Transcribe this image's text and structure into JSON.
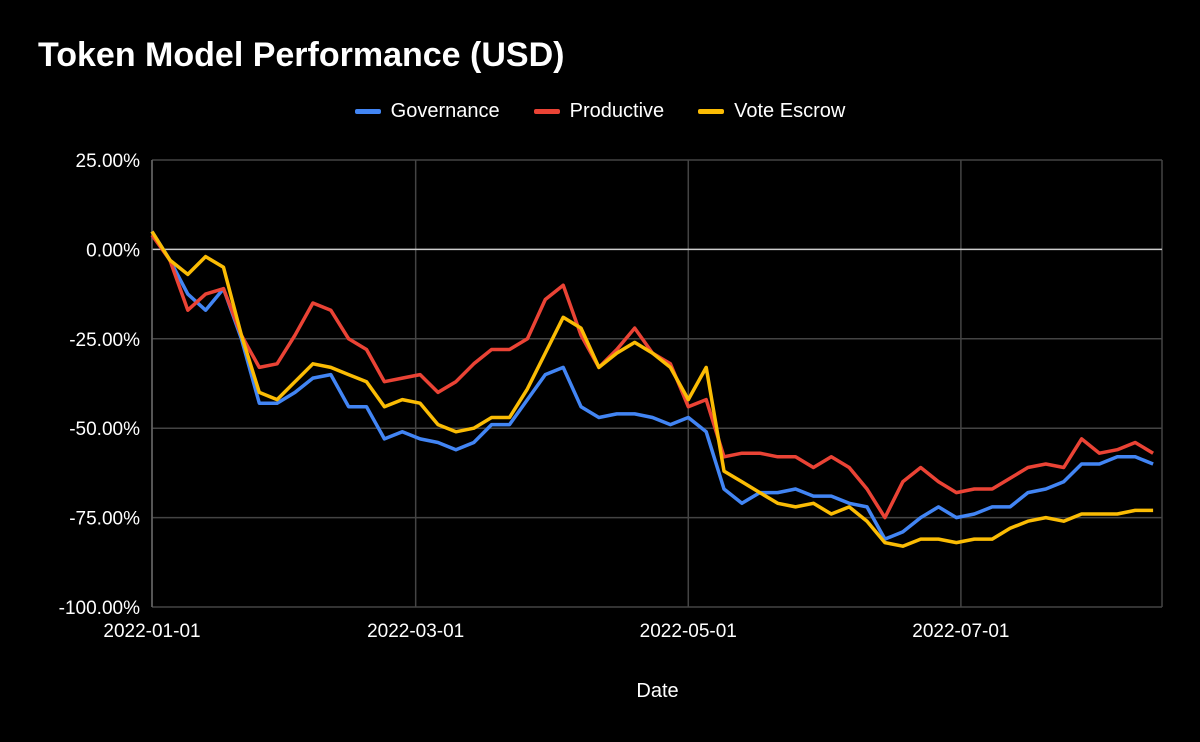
{
  "chart_data": {
    "type": "line",
    "title": "Token Model Performance (USD)",
    "xlabel": "Date",
    "ylabel": "",
    "ylim": [
      -100,
      25
    ],
    "xlim": [
      "2022-01-01",
      "2022-08-15"
    ],
    "yticks": [
      "25.00%",
      "0.00%",
      "-25.00%",
      "-50.00%",
      "-75.00%",
      "-100.00%"
    ],
    "ytick_values": [
      25,
      0,
      -25,
      -50,
      -75,
      -100
    ],
    "xticks": [
      "2022-01-01",
      "2022-03-01",
      "2022-05-01",
      "2022-07-01"
    ],
    "grid": true,
    "legend": "top",
    "x": [
      "2022-01-01",
      "2022-01-05",
      "2022-01-09",
      "2022-01-13",
      "2022-01-17",
      "2022-01-21",
      "2022-01-25",
      "2022-01-29",
      "2022-02-02",
      "2022-02-06",
      "2022-02-10",
      "2022-02-14",
      "2022-02-18",
      "2022-02-22",
      "2022-02-26",
      "2022-03-02",
      "2022-03-06",
      "2022-03-10",
      "2022-03-14",
      "2022-03-18",
      "2022-03-22",
      "2022-03-26",
      "2022-03-30",
      "2022-04-03",
      "2022-04-07",
      "2022-04-11",
      "2022-04-15",
      "2022-04-19",
      "2022-04-23",
      "2022-04-27",
      "2022-05-01",
      "2022-05-05",
      "2022-05-09",
      "2022-05-13",
      "2022-05-17",
      "2022-05-21",
      "2022-05-25",
      "2022-05-29",
      "2022-06-02",
      "2022-06-06",
      "2022-06-10",
      "2022-06-14",
      "2022-06-18",
      "2022-06-22",
      "2022-06-26",
      "2022-06-30",
      "2022-07-04",
      "2022-07-08",
      "2022-07-12",
      "2022-07-16",
      "2022-07-20",
      "2022-07-24",
      "2022-07-28",
      "2022-08-01",
      "2022-08-05",
      "2022-08-09",
      "2022-08-13"
    ],
    "series": [
      {
        "name": "Governance",
        "color": "#4285f4",
        "values": [
          5,
          -3,
          -12.5,
          -17,
          -11,
          -25,
          -43,
          -43,
          -40,
          -36,
          -35,
          -44,
          -44,
          -53,
          -51,
          -53,
          -54,
          -56,
          -54,
          -49,
          -49,
          -42,
          -35,
          -33,
          -44,
          -47,
          -46,
          -46,
          -47,
          -49,
          -47,
          -51,
          -67,
          -71,
          -68,
          -68,
          -67,
          -69,
          -69,
          -71,
          -72,
          -81,
          -79,
          -75,
          -72,
          -75,
          -74,
          -72,
          -72,
          -68,
          -67,
          -65,
          -60,
          -60,
          -58,
          -58,
          -60
        ]
      },
      {
        "name": "Productive",
        "color": "#ea4335",
        "values": [
          4,
          -3,
          -17,
          -12.5,
          -11,
          -24,
          -33,
          -32,
          -24,
          -15,
          -17,
          -25,
          -28,
          -37,
          -36,
          -35,
          -40,
          -37,
          -32,
          -28,
          -28,
          -25,
          -14,
          -10,
          -24,
          -33,
          -28,
          -22,
          -29,
          -32,
          -44,
          -42,
          -58,
          -57,
          -57,
          -58,
          -58,
          -61,
          -58,
          -61,
          -67,
          -75,
          -65,
          -61,
          -65,
          -68,
          -67,
          -67,
          -64,
          -61,
          -60,
          -61,
          -53,
          -57,
          -56,
          -54,
          -57
        ]
      },
      {
        "name": "Vote Escrow",
        "color": "#fbbc04",
        "values": [
          5,
          -3,
          -7,
          -2,
          -5,
          -24,
          -40,
          -42,
          -37,
          -32,
          -33,
          -35,
          -37,
          -44,
          -42,
          -43,
          -49,
          -51,
          -50,
          -47,
          -47,
          -39,
          -29,
          -19,
          -22,
          -33,
          -29,
          -26,
          -29,
          -33,
          -42,
          -33,
          -62,
          -65,
          -68,
          -71,
          -72,
          -71,
          -74,
          -72,
          -76,
          -82,
          -83,
          -81,
          -81,
          -82,
          -81,
          -81,
          -78,
          -76,
          -75,
          -76,
          -74,
          -74,
          -74,
          -73,
          -73
        ]
      }
    ]
  }
}
